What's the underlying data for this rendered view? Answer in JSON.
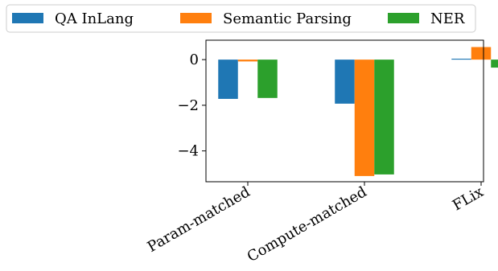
{
  "chart_data": {
    "type": "bar",
    "title": "",
    "xlabel": "",
    "ylabel": "",
    "categories": [
      "Param-matched",
      "Compute-matched",
      "FLix"
    ],
    "series": [
      {
        "name": "QA InLang",
        "color": "#1f77b4",
        "values": [
          -1.72,
          -1.93,
          0.04
        ]
      },
      {
        "name": "Semantic Parsing",
        "color": "#ff7f0e",
        "values": [
          -0.08,
          -5.1,
          0.55
        ]
      },
      {
        "name": "NER",
        "color": "#2ca02c",
        "values": [
          -1.68,
          -5.03,
          -0.35
        ]
      }
    ],
    "ylim": [
      -5.35,
      0.85
    ],
    "yticks": [
      0,
      -2,
      -4
    ],
    "ytick_labels": [
      "0",
      "−2",
      "−4"
    ],
    "grid": false,
    "legend_position": "top"
  }
}
